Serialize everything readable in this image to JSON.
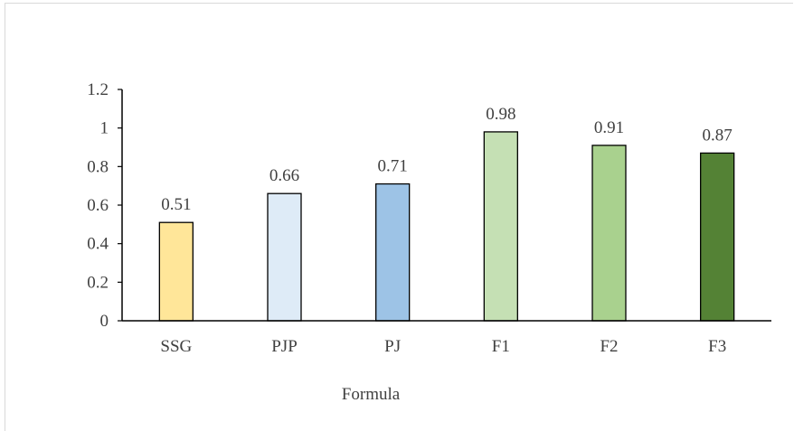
{
  "chart_data": {
    "type": "bar",
    "title": "",
    "xlabel": "Formula",
    "ylabel": "",
    "categories": [
      "SSG",
      "PJP",
      "PJ",
      "F1",
      "F2",
      "F3"
    ],
    "values": [
      0.51,
      0.66,
      0.71,
      0.98,
      0.91,
      0.87
    ],
    "value_labels": [
      "0.51",
      "0.66",
      "0.71",
      "0.98",
      "0.91",
      "0.87"
    ],
    "bar_colors": [
      "#ffe699",
      "#deebf7",
      "#9dc3e6",
      "#c5e0b4",
      "#a9d18e",
      "#548235"
    ],
    "bar_border_color": "#000000",
    "ylim": [
      0,
      1.2
    ],
    "yticks": [
      0,
      0.2,
      0.4,
      0.6,
      0.8,
      1,
      1.2
    ],
    "ytick_labels": [
      "0",
      "0.2",
      "0.4",
      "0.6",
      "0.8",
      "1",
      "1.2"
    ],
    "grid": false,
    "legend": "none"
  }
}
